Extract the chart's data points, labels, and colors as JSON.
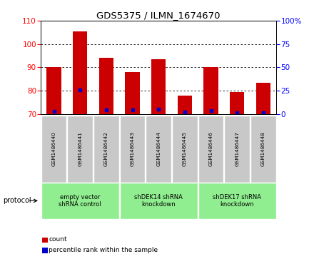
{
  "title": "GDS5375 / ILMN_1674670",
  "samples": [
    "GSM1486440",
    "GSM1486441",
    "GSM1486442",
    "GSM1486443",
    "GSM1486444",
    "GSM1486445",
    "GSM1486446",
    "GSM1486447",
    "GSM1486448"
  ],
  "counts": [
    90,
    105.5,
    94,
    88,
    93.5,
    78,
    90,
    79.5,
    83.5
  ],
  "percentile_ranks": [
    3.0,
    25.5,
    4.5,
    4.5,
    5.0,
    2.0,
    3.5,
    1.5,
    1.5
  ],
  "ylim_left": [
    70,
    110
  ],
  "ylim_right": [
    0,
    100
  ],
  "yticks_left": [
    70,
    80,
    90,
    100,
    110
  ],
  "yticks_right": [
    0,
    25,
    50,
    75,
    100
  ],
  "protocol_groups": [
    {
      "label": "empty vector\nshRNA control",
      "start": 0,
      "end": 3
    },
    {
      "label": "shDEK14 shRNA\nknockdown",
      "start": 3,
      "end": 6
    },
    {
      "label": "shDEK17 shRNA\nknockdown",
      "start": 6,
      "end": 9
    }
  ],
  "bar_color": "#cc0000",
  "dot_color": "#0000cc",
  "background_xtick": "#c8c8c8",
  "background_protocol": "#90ee90",
  "protocol_label": "protocol",
  "legend_count_label": "count",
  "legend_percentile_label": "percentile rank within the sample",
  "bar_width": 0.55,
  "title_fontsize": 9.5,
  "tick_fontsize": 7.5,
  "sample_fontsize": 5.2,
  "proto_fontsize": 6.0,
  "legend_fontsize": 6.5
}
